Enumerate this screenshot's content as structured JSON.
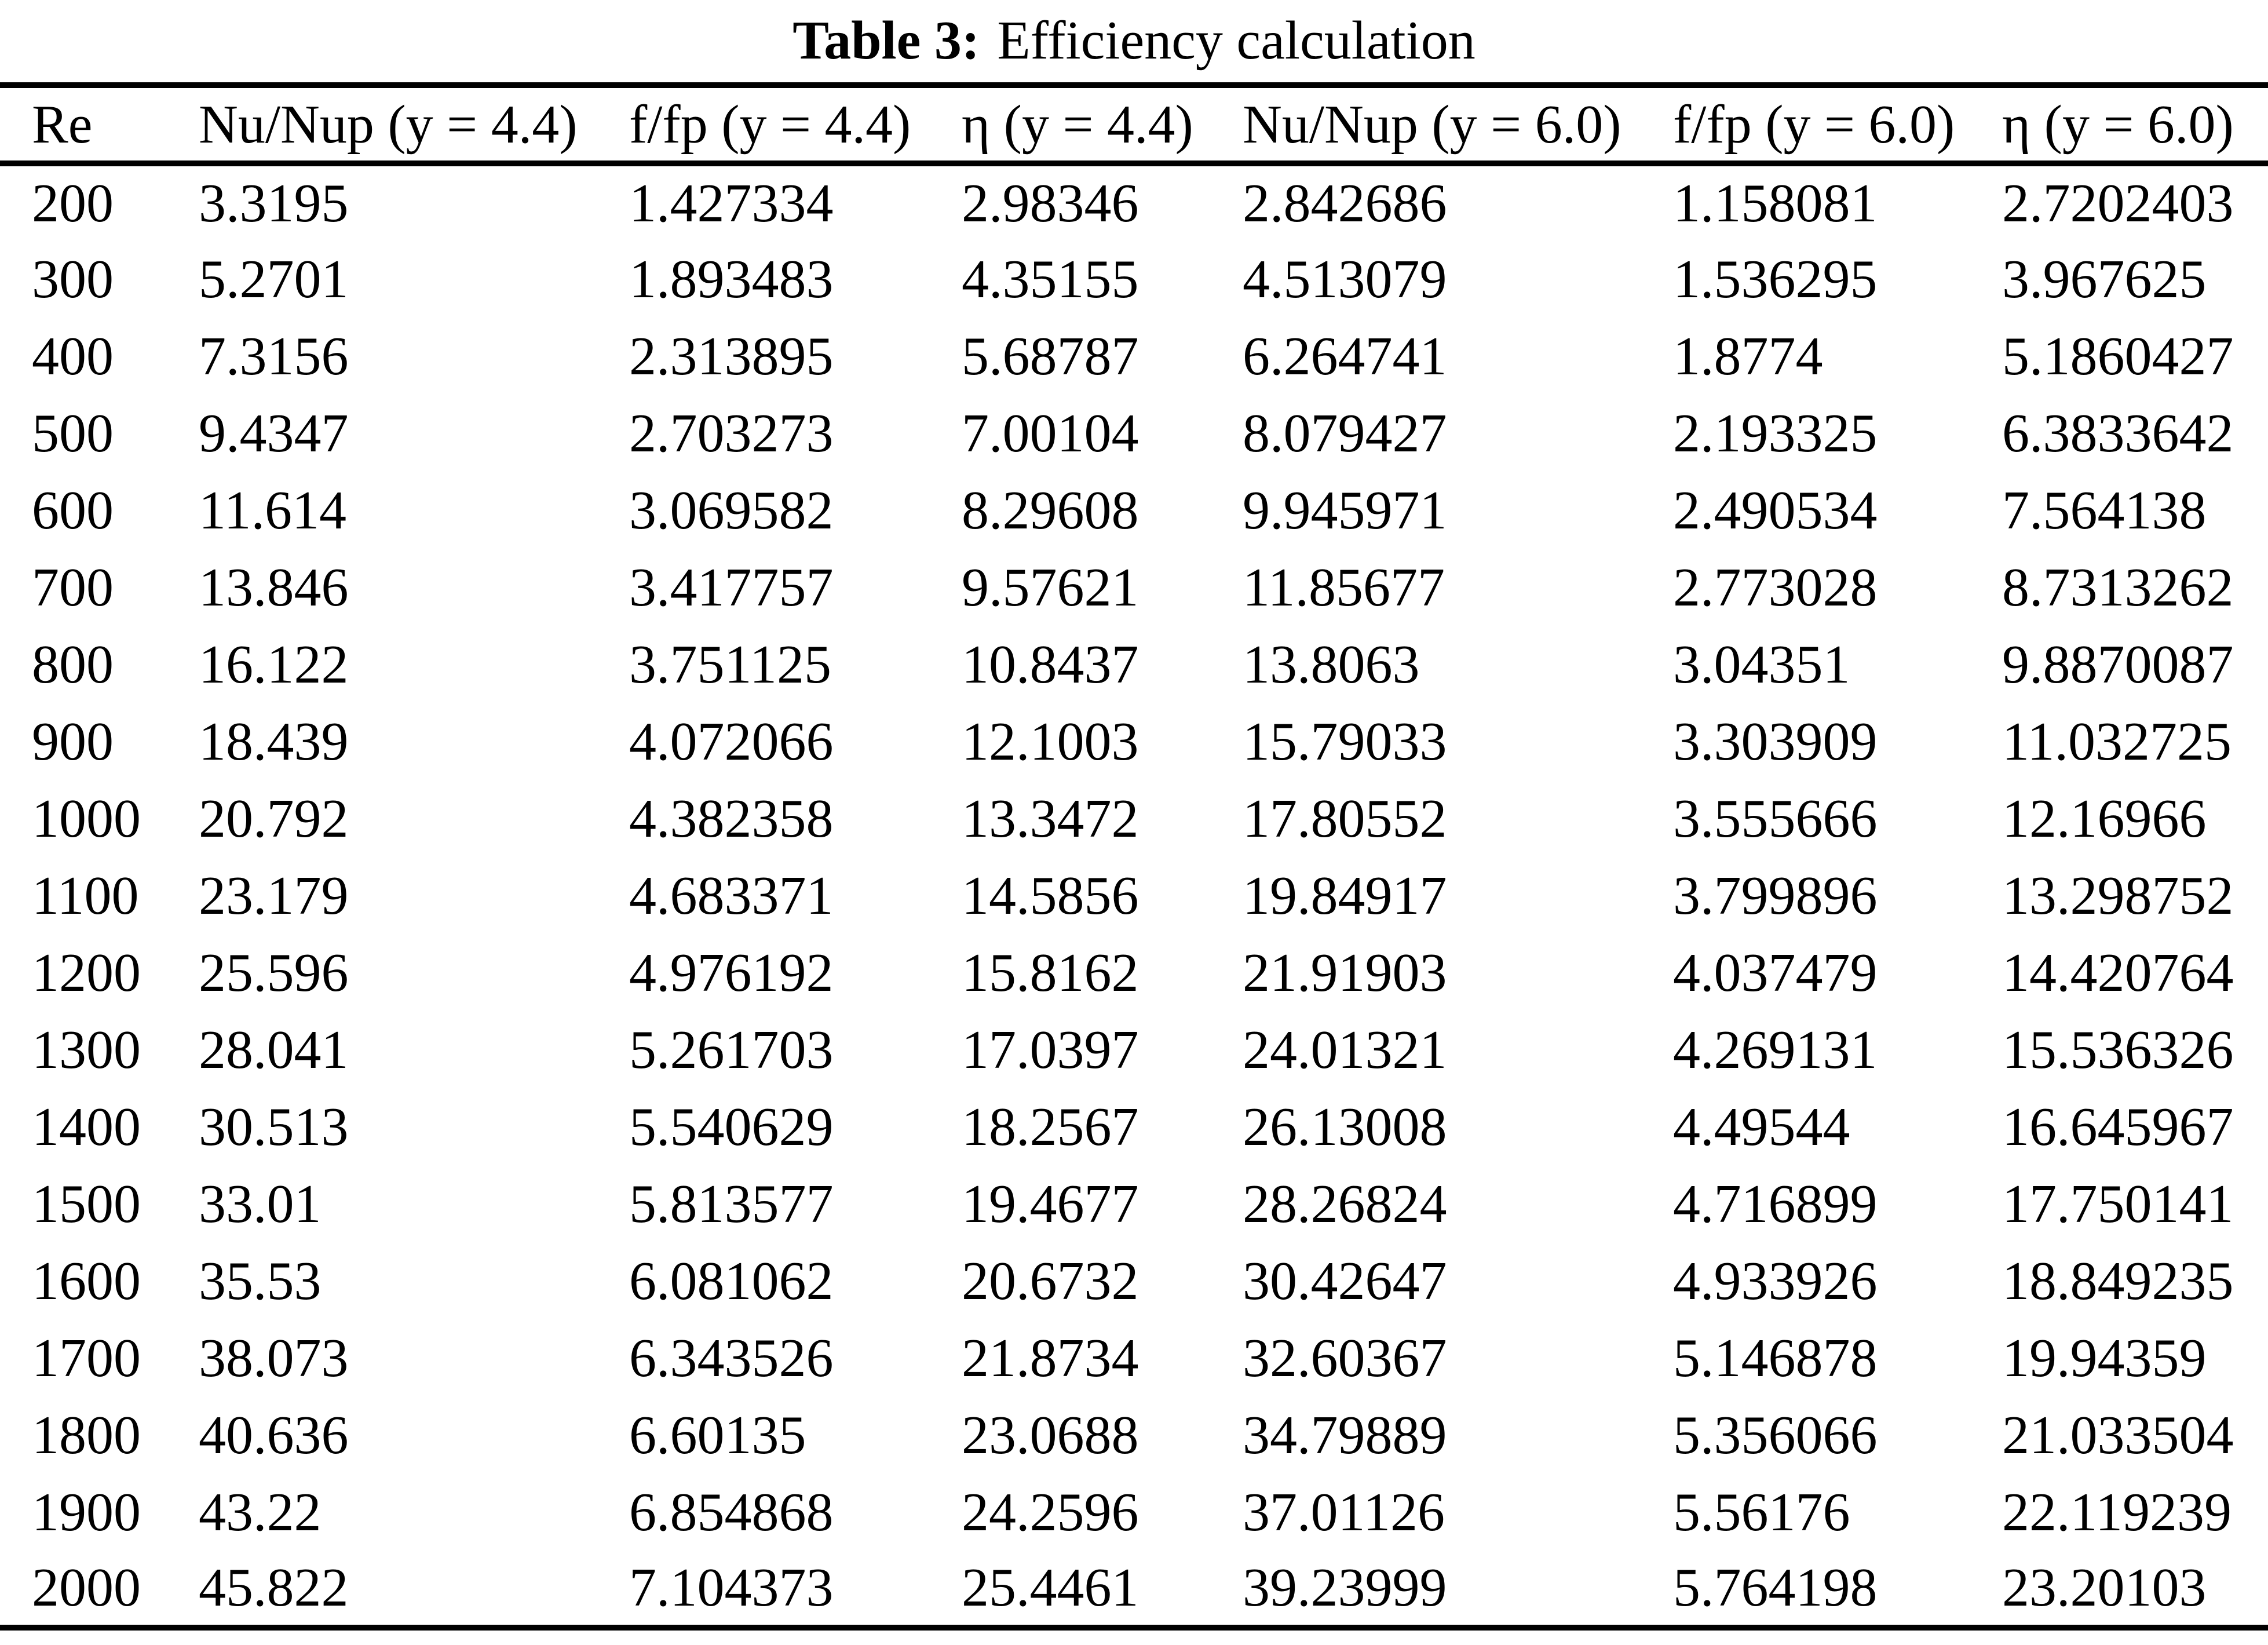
{
  "caption": {
    "label": "Table 3:",
    "text": "Efficiency calculation"
  },
  "table": {
    "columns": [
      "Re",
      "Nu/Nup (y = 4.4)",
      "f/fp (y = 4.4)",
      "η (y = 4.4)",
      "Nu/Nup (y = 6.0)",
      "f/fp (y = 6.0)",
      "η (y = 6.0)"
    ],
    "rows": [
      [
        "200",
        "3.3195",
        "1.427334",
        "2.98346",
        "2.842686",
        "1.158081",
        "2.7202403"
      ],
      [
        "300",
        "5.2701",
        "1.893483",
        "4.35155",
        "4.513079",
        "1.536295",
        "3.967625"
      ],
      [
        "400",
        "7.3156",
        "2.313895",
        "5.68787",
        "6.264741",
        "1.8774",
        "5.1860427"
      ],
      [
        "500",
        "9.4347",
        "2.703273",
        "7.00104",
        "8.079427",
        "2.193325",
        "6.3833642"
      ],
      [
        "600",
        "11.614",
        "3.069582",
        "8.29608",
        "9.945971",
        "2.490534",
        "7.564138"
      ],
      [
        "700",
        "13.846",
        "3.417757",
        "9.57621",
        "11.85677",
        "2.773028",
        "8.7313262"
      ],
      [
        "800",
        "16.122",
        "3.751125",
        "10.8437",
        "13.8063",
        "3.04351",
        "9.8870087"
      ],
      [
        "900",
        "18.439",
        "4.072066",
        "12.1003",
        "15.79033",
        "3.303909",
        "11.032725"
      ],
      [
        "1000",
        "20.792",
        "4.382358",
        "13.3472",
        "17.80552",
        "3.555666",
        "12.16966"
      ],
      [
        "1100",
        "23.179",
        "4.683371",
        "14.5856",
        "19.84917",
        "3.799896",
        "13.298752"
      ],
      [
        "1200",
        "25.596",
        "4.976192",
        "15.8162",
        "21.91903",
        "4.037479",
        "14.420764"
      ],
      [
        "1300",
        "28.041",
        "5.261703",
        "17.0397",
        "24.01321",
        "4.269131",
        "15.536326"
      ],
      [
        "1400",
        "30.513",
        "5.540629",
        "18.2567",
        "26.13008",
        "4.49544",
        "16.645967"
      ],
      [
        "1500",
        "33.01",
        "5.813577",
        "19.4677",
        "28.26824",
        "4.716899",
        "17.750141"
      ],
      [
        "1600",
        "35.53",
        "6.081062",
        "20.6732",
        "30.42647",
        "4.933926",
        "18.849235"
      ],
      [
        "1700",
        "38.073",
        "6.343526",
        "21.8734",
        "32.60367",
        "5.146878",
        "19.94359"
      ],
      [
        "1800",
        "40.636",
        "6.60135",
        "23.0688",
        "34.79889",
        "5.356066",
        "21.033504"
      ],
      [
        "1900",
        "43.22",
        "6.854868",
        "24.2596",
        "37.01126",
        "5.56176",
        "22.119239"
      ],
      [
        "2000",
        "45.822",
        "7.104373",
        "25.4461",
        "39.23999",
        "5.764198",
        "23.20103"
      ]
    ]
  }
}
